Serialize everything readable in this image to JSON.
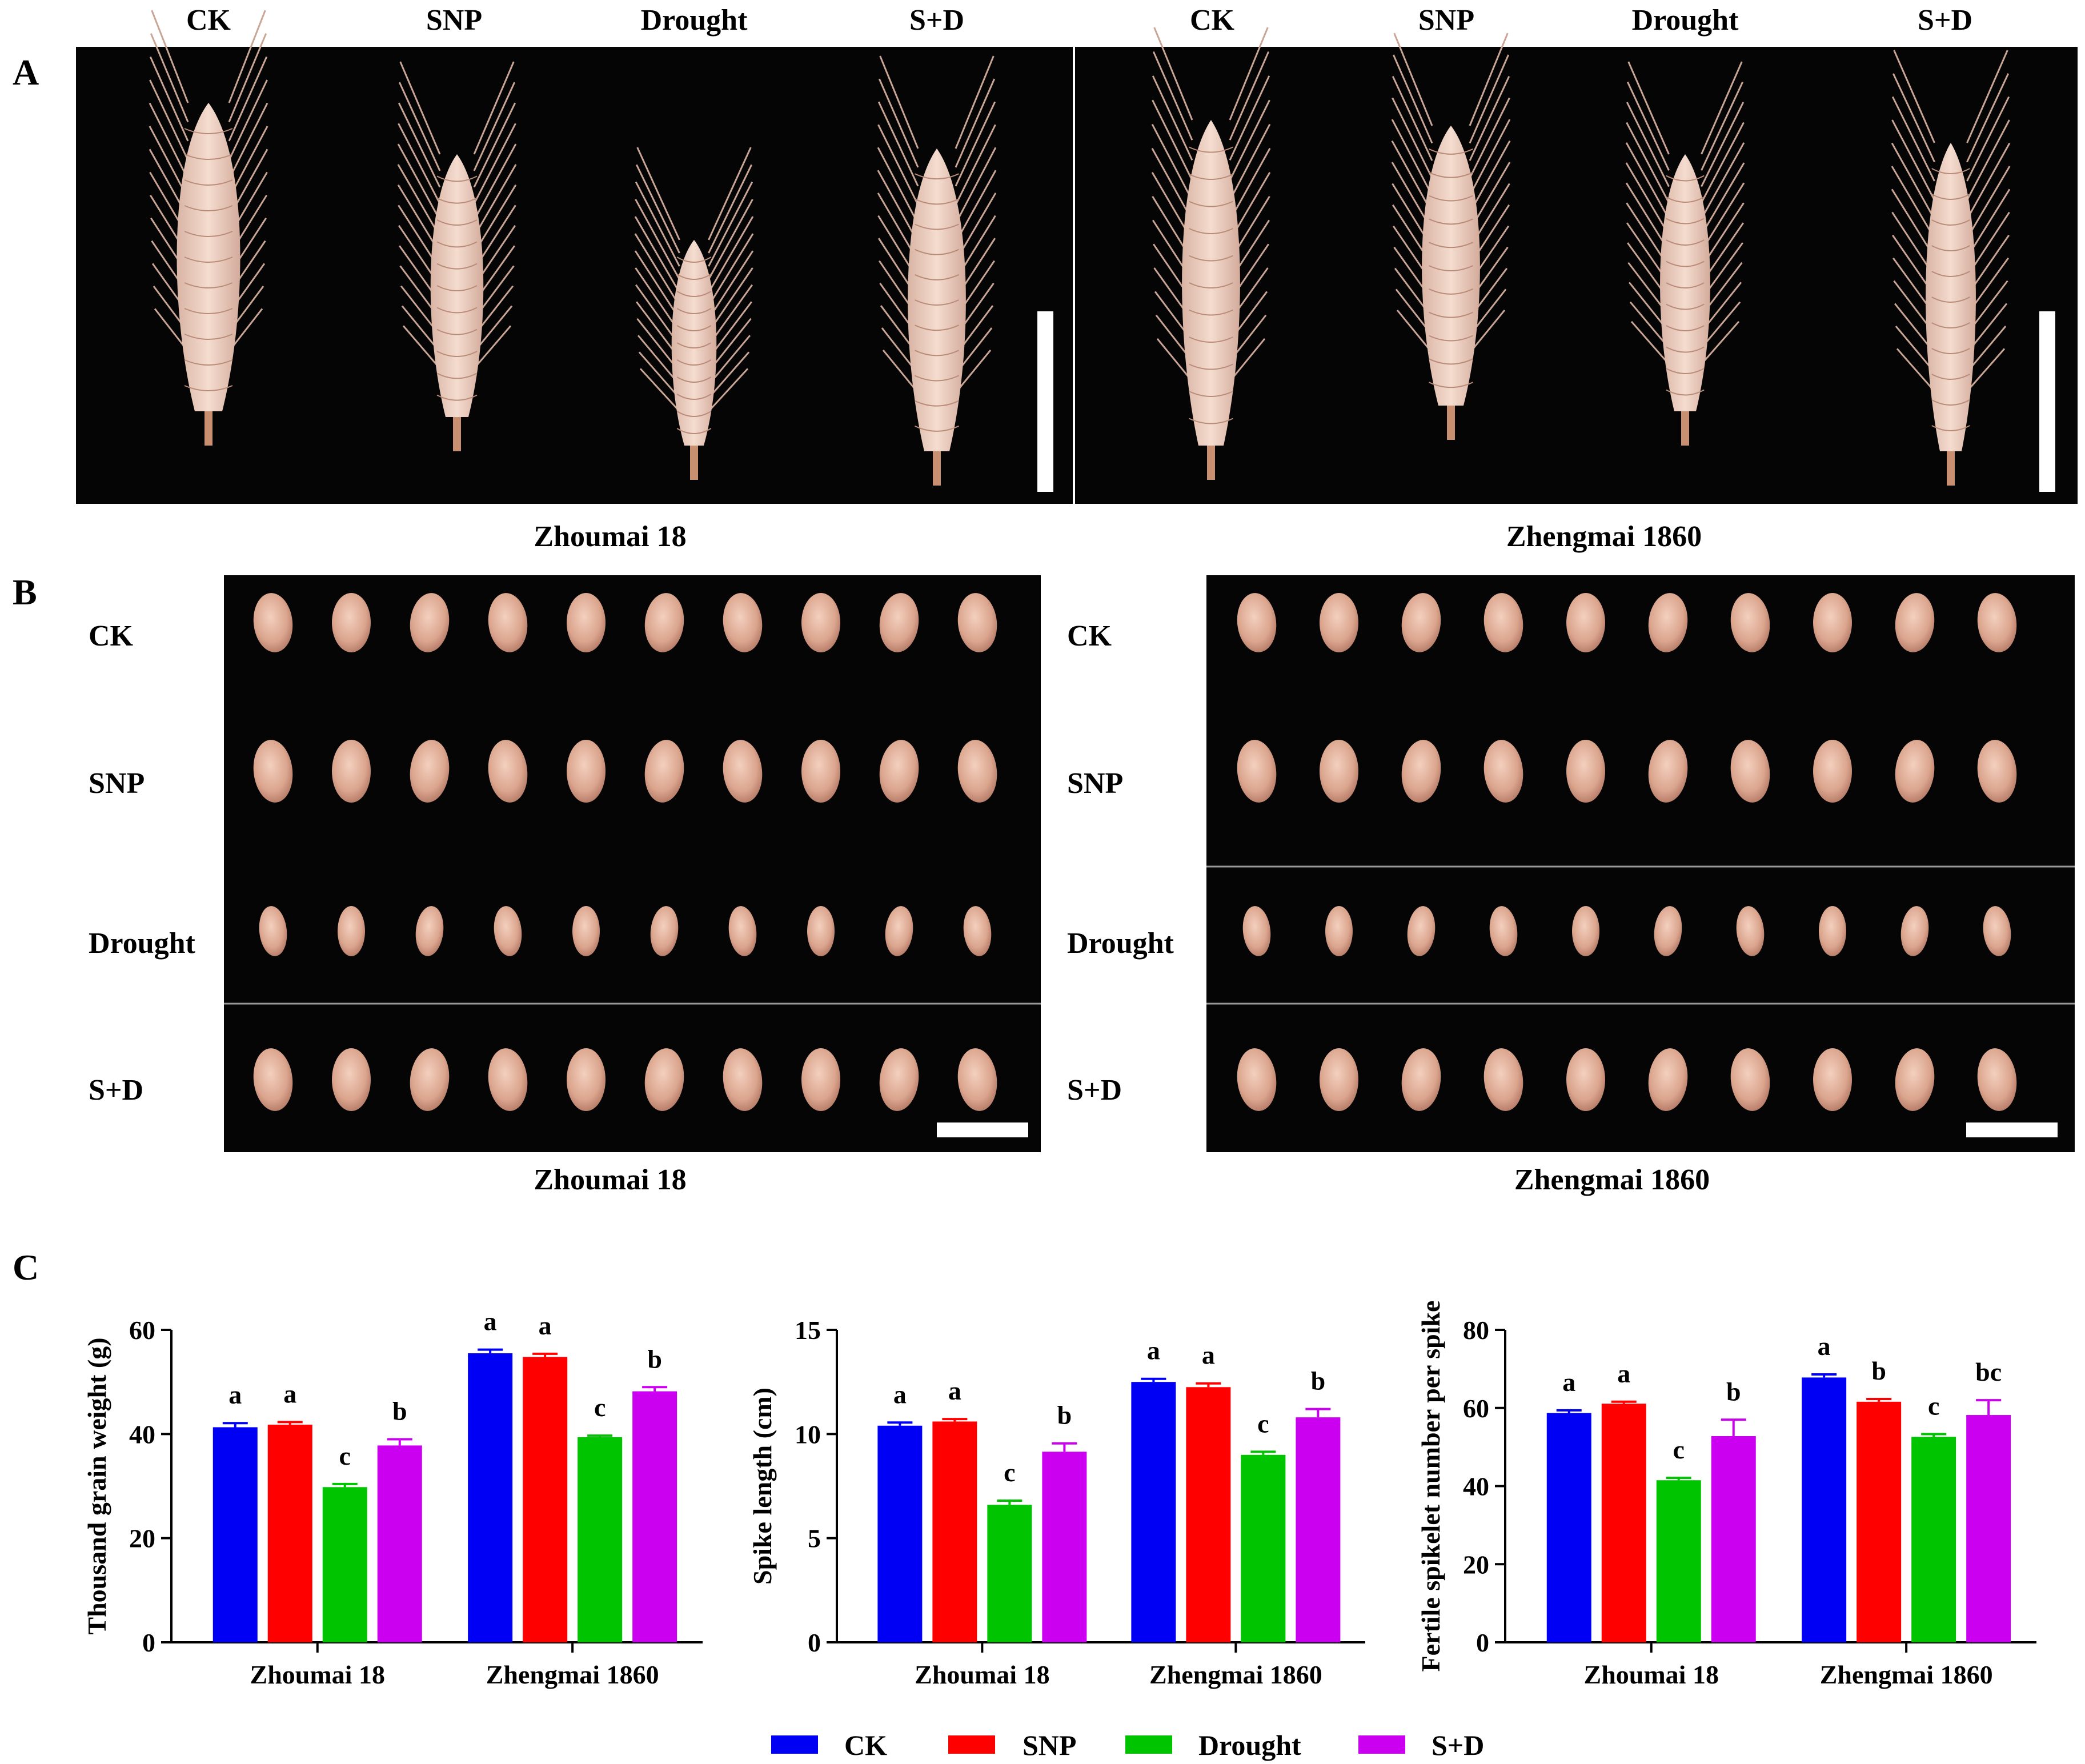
{
  "panels": {
    "a": "A",
    "b": "B",
    "c": "C"
  },
  "colors": {
    "CK": "#0000f5",
    "SNP": "#ff0000",
    "Drought": "#00c400",
    "S+D": "#cc00f0"
  },
  "panel_a": {
    "treatments": [
      "CK",
      "SNP",
      "Drought",
      "S+D"
    ],
    "groups": [
      "Zhoumai 18",
      "Zhengmai 1860"
    ]
  },
  "panel_b": {
    "treatments": [
      "CK",
      "SNP",
      "Drought",
      "S+D"
    ],
    "groups": [
      "Zhoumai 18",
      "Zhengmai 1860"
    ]
  },
  "legend": [
    "CK",
    "SNP",
    "Drought",
    "S+D"
  ],
  "chart_data": [
    {
      "type": "bar",
      "categories": [
        "Zhoumai 18",
        "Zhengmai 1860"
      ],
      "ylabel": "Thousand grain weight (g)",
      "ylim": [
        0,
        60
      ],
      "yticks": [
        0,
        20,
        40,
        60
      ],
      "series": [
        {
          "name": "CK",
          "values": [
            41.3,
            55.5
          ],
          "errors": [
            0.8,
            0.7
          ],
          "letters": [
            "a",
            "a"
          ]
        },
        {
          "name": "SNP",
          "values": [
            41.8,
            54.8
          ],
          "errors": [
            0.5,
            0.6
          ],
          "letters": [
            "a",
            "a"
          ]
        },
        {
          "name": "Drought",
          "values": [
            29.8,
            39.4
          ],
          "errors": [
            0.6,
            0.3
          ],
          "letters": [
            "c",
            "c"
          ]
        },
        {
          "name": "S+D",
          "values": [
            37.8,
            48.2
          ],
          "errors": [
            1.2,
            0.8
          ],
          "letters": [
            "b",
            "b"
          ]
        }
      ]
    },
    {
      "type": "bar",
      "categories": [
        "Zhoumai 18",
        "Zhengmai 1860"
      ],
      "ylabel": "Spike length (cm)",
      "ylim": [
        0,
        15
      ],
      "yticks": [
        0,
        5,
        10,
        15
      ],
      "series": [
        {
          "name": "CK",
          "values": [
            10.4,
            12.5
          ],
          "errors": [
            0.15,
            0.15
          ],
          "letters": [
            "a",
            "a"
          ]
        },
        {
          "name": "SNP",
          "values": [
            10.6,
            12.25
          ],
          "errors": [
            0.12,
            0.18
          ],
          "letters": [
            "a",
            "a"
          ]
        },
        {
          "name": "Drought",
          "values": [
            6.6,
            9.0
          ],
          "errors": [
            0.2,
            0.15
          ],
          "letters": [
            "c",
            "c"
          ]
        },
        {
          "name": "S+D",
          "values": [
            9.15,
            10.8
          ],
          "errors": [
            0.4,
            0.4
          ],
          "letters": [
            "b",
            "b"
          ]
        }
      ]
    },
    {
      "type": "bar",
      "categories": [
        "Zhoumai 18",
        "Zhengmai 1860"
      ],
      "ylabel": "Fertile spikelet number per spike",
      "ylim": [
        0,
        80
      ],
      "yticks": [
        0,
        20,
        40,
        60,
        80
      ],
      "series": [
        {
          "name": "CK",
          "values": [
            58.7,
            67.8
          ],
          "errors": [
            0.7,
            0.8
          ],
          "letters": [
            "a",
            "a"
          ]
        },
        {
          "name": "SNP",
          "values": [
            61.1,
            61.6
          ],
          "errors": [
            0.5,
            0.7
          ],
          "letters": [
            "a",
            "b"
          ]
        },
        {
          "name": "Drought",
          "values": [
            41.5,
            52.6
          ],
          "errors": [
            0.6,
            0.7
          ],
          "letters": [
            "c",
            "c"
          ]
        },
        {
          "name": "S+D",
          "values": [
            52.8,
            58.2
          ],
          "errors": [
            4.2,
            3.8
          ],
          "letters": [
            "b",
            "bc"
          ]
        }
      ]
    }
  ]
}
